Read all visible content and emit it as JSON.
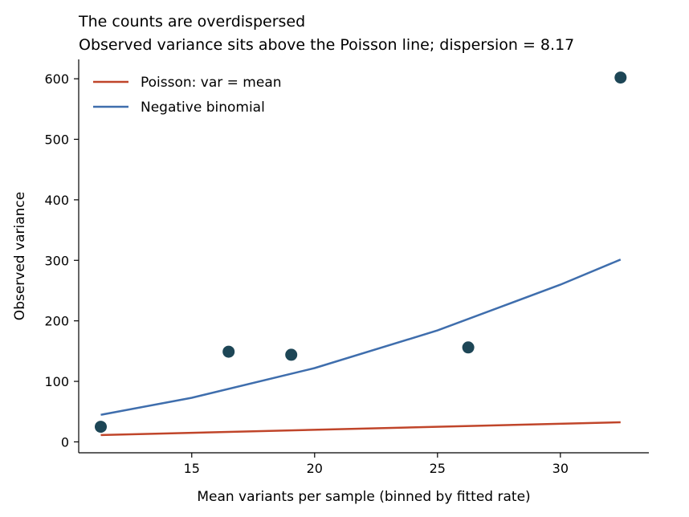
{
  "chart_data": {
    "type": "scatter",
    "title": "The counts are overdispersed",
    "subtitle": "Observed variance sits above the Poisson line; dispersion = 8.17",
    "xlabel": "Mean variants per sample (binned by fitted rate)",
    "ylabel": "Observed variance",
    "xlim": [
      10.4,
      33.6
    ],
    "ylim": [
      -18,
      632
    ],
    "xticks": [
      15,
      20,
      25,
      30
    ],
    "yticks": [
      0,
      100,
      200,
      300,
      400,
      500,
      600
    ],
    "grid": false,
    "legend_position": "top-left",
    "points": [
      {
        "x": 11.3,
        "y": 25
      },
      {
        "x": 16.5,
        "y": 149
      },
      {
        "x": 19.05,
        "y": 144
      },
      {
        "x": 26.25,
        "y": 156
      },
      {
        "x": 32.45,
        "y": 602
      }
    ],
    "series": [
      {
        "name": "Poisson: var = mean",
        "color": "#c0452a",
        "x": [
          11.3,
          32.45
        ],
        "y": [
          11.3,
          32.45
        ]
      },
      {
        "name": "Negative binomial",
        "color": "#3f6ead",
        "x": [
          11.3,
          15,
          20,
          25,
          30,
          32.45
        ],
        "y": [
          44.8,
          72.9,
          121.9,
          184.2,
          259.8,
          301.3
        ]
      }
    ],
    "point_color": "#1d4656"
  }
}
